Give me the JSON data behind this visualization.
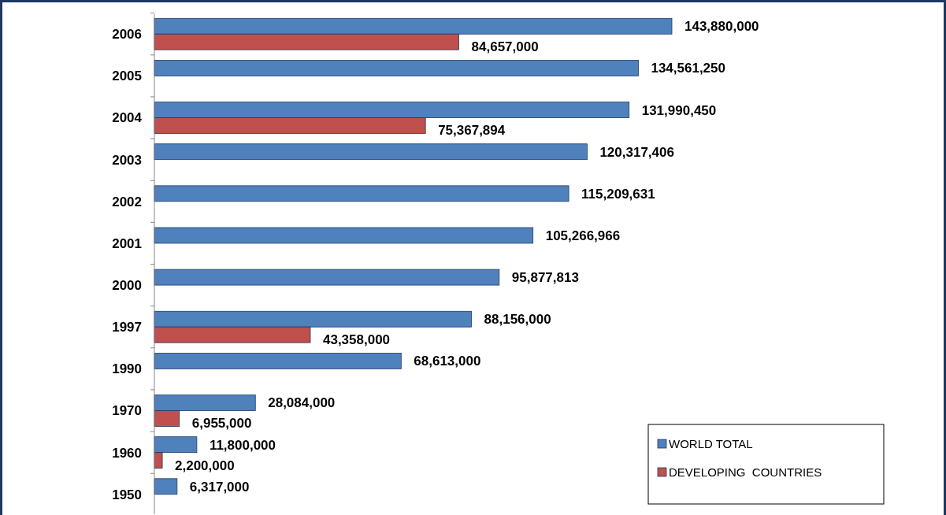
{
  "chart_data": {
    "type": "bar",
    "orientation": "horizontal",
    "categories": [
      "2006",
      "2005",
      "2004",
      "2003",
      "2002",
      "2001",
      "2000",
      "1997",
      "1990",
      "1970",
      "1960",
      "1950"
    ],
    "series": [
      {
        "name": "WORLD TOTAL",
        "color": "#4f81bd",
        "values": [
          143880000,
          134561250,
          131990450,
          120317406,
          115209631,
          105266966,
          95877813,
          88156000,
          68613000,
          28084000,
          11800000,
          6317000
        ],
        "value_labels": [
          "143,880,000",
          "134,561,250",
          "131,990,450",
          "120,317,406",
          "115,209,631",
          "105,266,966",
          "95,877,813",
          "88,156,000",
          "68,613,000",
          "28,084,000",
          "11,800,000",
          "6,317,000"
        ]
      },
      {
        "name": "DEVELOPING  COUNTRIES",
        "color": "#c0504d",
        "values": [
          84657000,
          null,
          75367894,
          null,
          null,
          null,
          null,
          43358000,
          null,
          6955000,
          2200000,
          null
        ],
        "value_labels": [
          "84,657,000",
          null,
          "75,367,894",
          null,
          null,
          null,
          null,
          "43,358,000",
          null,
          "6,955,000",
          "2,200,000",
          null
        ]
      }
    ],
    "legend": "bottom right"
  }
}
